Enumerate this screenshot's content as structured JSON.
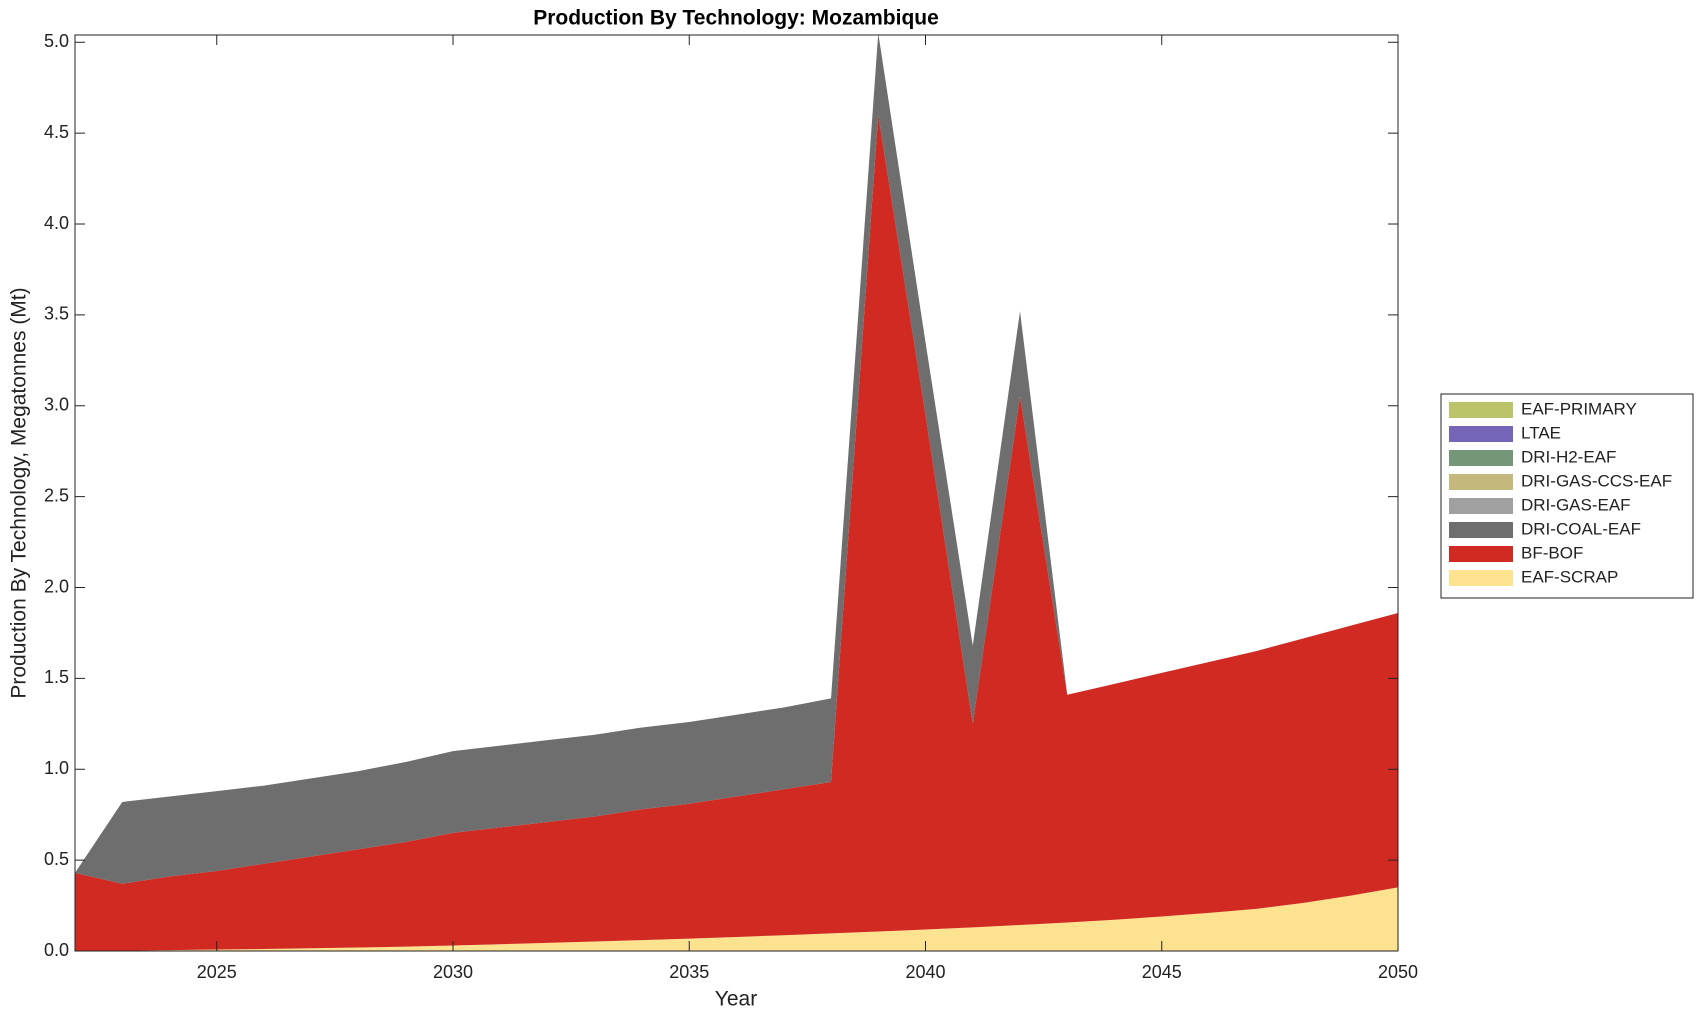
{
  "chart_data": {
    "type": "stacked-area",
    "title": "Production By Technology: Mozambique",
    "x_label": "Year",
    "y_label": "Production By Technology, Megatonnes (Mt)",
    "x": [
      2022,
      2023,
      2024,
      2025,
      2026,
      2027,
      2028,
      2029,
      2030,
      2031,
      2032,
      2033,
      2034,
      2035,
      2036,
      2037,
      2038,
      2039,
      2040,
      2041,
      2042,
      2043,
      2044,
      2045,
      2046,
      2047,
      2048,
      2049,
      2050
    ],
    "xlim": [
      2022,
      2050
    ],
    "xticks": [
      2025,
      2030,
      2035,
      2040,
      2045,
      2050
    ],
    "ylim": [
      0,
      5.04
    ],
    "yticks": [
      {
        "value": 0,
        "label": "0.0"
      },
      {
        "value": 0.5,
        "label": "0.5"
      },
      {
        "value": 1,
        "label": "1.0"
      },
      {
        "value": 1.5,
        "label": "1.5"
      },
      {
        "value": 2,
        "label": "2.0"
      },
      {
        "value": 2.5,
        "label": "2.5"
      },
      {
        "value": 3,
        "label": "3.0"
      },
      {
        "value": 3.5,
        "label": "3.5"
      },
      {
        "value": 4,
        "label": "4.0"
      },
      {
        "value": 4.5,
        "label": "4.5"
      },
      {
        "value": 5,
        "label": "5.0"
      }
    ],
    "legend": "outside-right",
    "series": [
      {
        "name": "EAF-SCRAP",
        "color": "#fde28f",
        "values": [
          0,
          0.002,
          0.005,
          0.008,
          0.011,
          0.015,
          0.019,
          0.024,
          0.03,
          0.037,
          0.045,
          0.052,
          0.06,
          0.068,
          0.077,
          0.087,
          0.097,
          0.107,
          0.118,
          0.13,
          0.143,
          0.157,
          0.172,
          0.19,
          0.21,
          0.232,
          0.265,
          0.305,
          0.35
        ]
      },
      {
        "name": "BF-BOF",
        "color": "#d12a23",
        "values": [
          0.43,
          0.368,
          0.405,
          0.432,
          0.469,
          0.505,
          0.541,
          0.576,
          0.62,
          0.643,
          0.665,
          0.688,
          0.72,
          0.742,
          0.773,
          0.803,
          0.833,
          4.493,
          2.832,
          1.12,
          2.907,
          1.253,
          1.298,
          1.34,
          1.38,
          1.418,
          1.455,
          1.485,
          1.51
        ]
      },
      {
        "name": "DRI-COAL-EAF",
        "color": "#6e6e6e",
        "values": [
          0,
          0.45,
          0.44,
          0.44,
          0.43,
          0.43,
          0.43,
          0.44,
          0.45,
          0.45,
          0.45,
          0.45,
          0.45,
          0.45,
          0.45,
          0.45,
          0.46,
          0.45,
          0.4,
          0.43,
          0.47,
          0,
          0,
          0,
          0,
          0,
          0,
          0,
          0
        ]
      },
      {
        "name": "DRI-GAS-EAF",
        "color": "#a0a0a0",
        "values": [
          0,
          0,
          0,
          0,
          0,
          0,
          0,
          0,
          0,
          0,
          0,
          0,
          0,
          0,
          0,
          0,
          0,
          0,
          0,
          0,
          0,
          0,
          0,
          0,
          0,
          0,
          0,
          0,
          0
        ]
      },
      {
        "name": "DRI-GAS-CCS-EAF",
        "color": "#c4b87c",
        "values": [
          0,
          0,
          0,
          0,
          0,
          0,
          0,
          0,
          0,
          0,
          0,
          0,
          0,
          0,
          0,
          0,
          0,
          0,
          0,
          0,
          0,
          0,
          0,
          0,
          0,
          0,
          0,
          0,
          0
        ]
      },
      {
        "name": "DRI-H2-EAF",
        "color": "#76967a",
        "values": [
          0,
          0,
          0,
          0,
          0,
          0,
          0,
          0,
          0,
          0,
          0,
          0,
          0,
          0,
          0,
          0,
          0,
          0,
          0,
          0,
          0,
          0,
          0,
          0,
          0,
          0,
          0,
          0,
          0
        ]
      },
      {
        "name": "LTAE",
        "color": "#7465b8",
        "values": [
          0,
          0,
          0,
          0,
          0,
          0,
          0,
          0,
          0,
          0,
          0,
          0,
          0,
          0,
          0,
          0,
          0,
          0,
          0,
          0,
          0,
          0,
          0,
          0,
          0,
          0,
          0,
          0,
          0
        ]
      },
      {
        "name": "EAF-PRIMARY",
        "color": "#bcc46a",
        "values": [
          0,
          0,
          0,
          0,
          0,
          0,
          0,
          0,
          0,
          0,
          0,
          0,
          0,
          0,
          0,
          0,
          0,
          0,
          0,
          0,
          0,
          0,
          0,
          0,
          0,
          0,
          0,
          0,
          0
        ]
      }
    ]
  }
}
